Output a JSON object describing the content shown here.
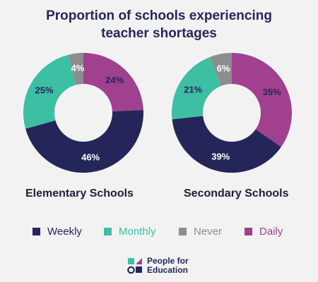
{
  "title_lines": [
    "Proportion of schools experiencing",
    "teacher shortages"
  ],
  "chart_data": [
    {
      "type": "pie",
      "variant": "donut",
      "title": "Elementary Schools",
      "categories": [
        "Weekly",
        "Monthly",
        "Never",
        "Daily"
      ],
      "values": [
        46,
        25,
        4,
        24
      ],
      "labels": [
        "46%",
        "25%",
        "4%",
        "24%"
      ],
      "colors": [
        "#24265a",
        "#3dbfa3",
        "#8d8d8d",
        "#a0408f"
      ],
      "label_colors": [
        "#ffffff",
        "#24265a",
        "#ffffff",
        "#24265a"
      ]
    },
    {
      "type": "pie",
      "variant": "donut",
      "title": "Secondary Schools",
      "categories": [
        "Weekly",
        "Monthly",
        "Never",
        "Daily"
      ],
      "values": [
        39,
        21,
        6,
        35
      ],
      "labels": [
        "39%",
        "21%",
        "6%",
        "35%"
      ],
      "colors": [
        "#24265a",
        "#3dbfa3",
        "#8d8d8d",
        "#a0408f"
      ],
      "label_colors": [
        "#ffffff",
        "#24265a",
        "#ffffff",
        "#24265a"
      ]
    }
  ],
  "legend": [
    {
      "label": "Weekly",
      "color": "#24265a"
    },
    {
      "label": "Monthly",
      "color": "#3dbfa3"
    },
    {
      "label": "Never",
      "color": "#8d8d8d"
    },
    {
      "label": "Daily",
      "color": "#a0408f"
    }
  ],
  "logo": {
    "line1": "People for",
    "line2": "Education"
  }
}
